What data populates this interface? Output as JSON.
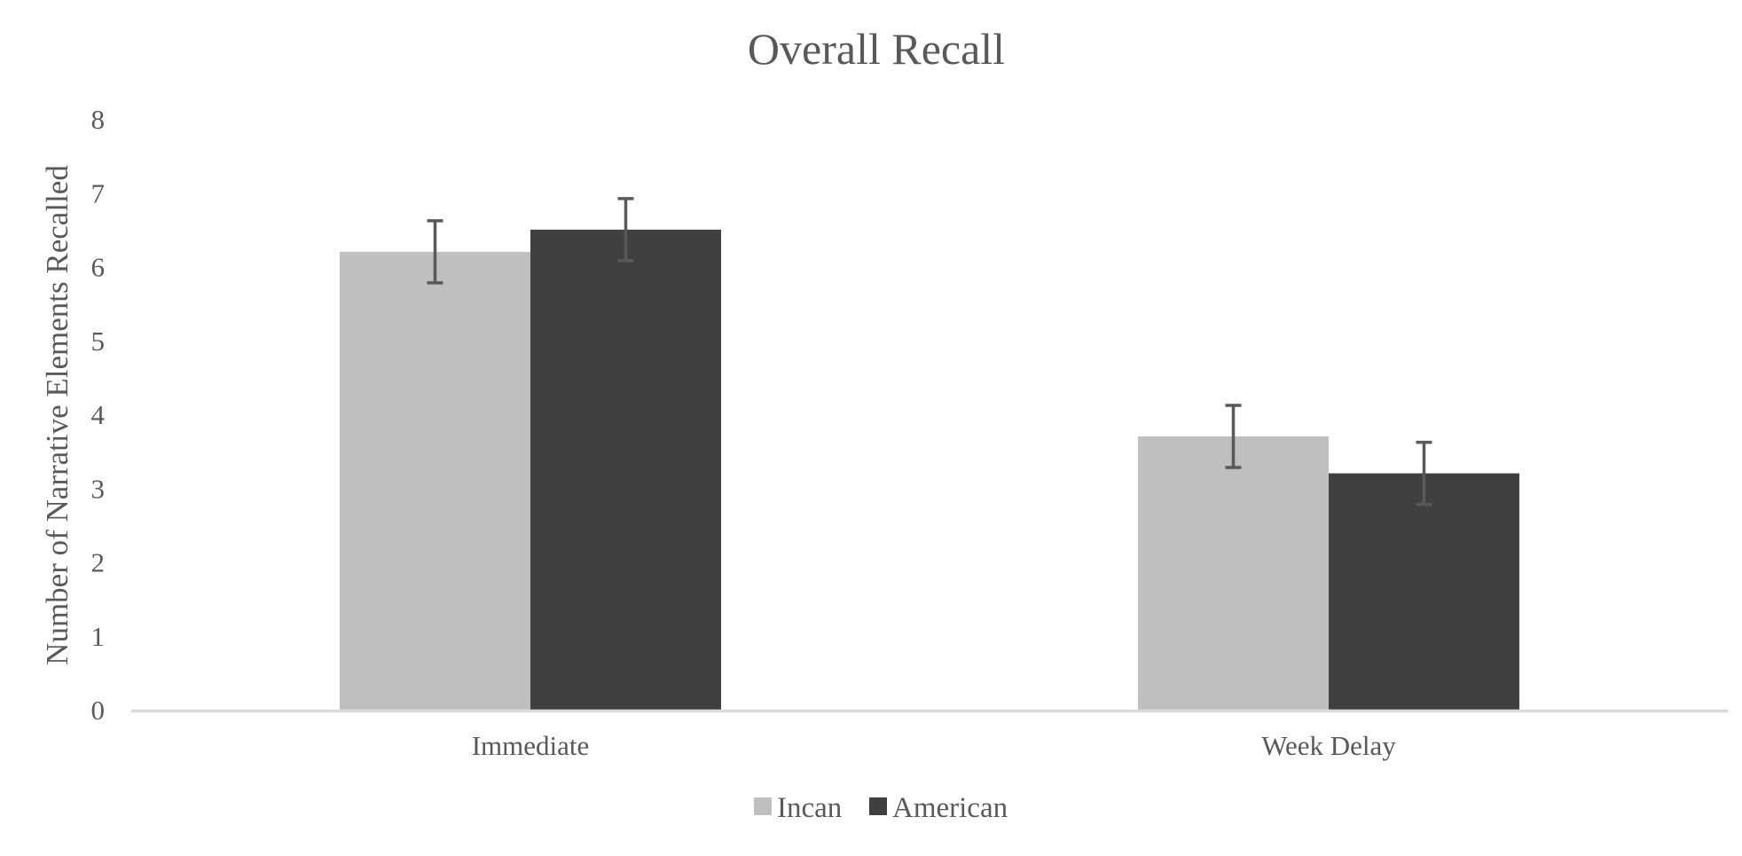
{
  "chart_data": {
    "type": "bar",
    "title": "Overall Recall",
    "xlabel": "",
    "ylabel": "Number of Narrative Elements Recalled",
    "categories": [
      "Immediate",
      "Week Delay"
    ],
    "ylim": [
      0,
      8
    ],
    "yticks": [
      "0",
      "1",
      "2",
      "3",
      "4",
      "5",
      "6",
      "7",
      "8"
    ],
    "grid": false,
    "legend_position": "bottom",
    "series": [
      {
        "name": "Incan",
        "color": "#bfbfbf",
        "values": [
          6.2,
          3.7
        ],
        "error": [
          0.42,
          0.42
        ]
      },
      {
        "name": "American",
        "color": "#404040",
        "values": [
          6.5,
          3.2
        ],
        "error": [
          0.42,
          0.42
        ]
      }
    ],
    "axis_color": "#d9d9d9",
    "error_bar_color": "#595959"
  }
}
